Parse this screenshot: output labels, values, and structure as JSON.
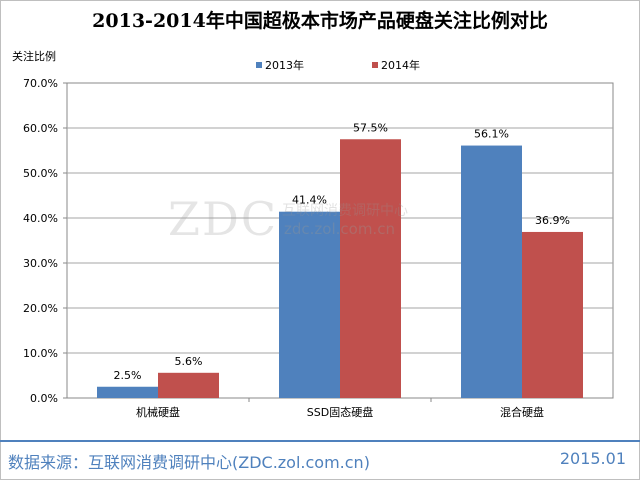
{
  "header": {
    "title": "2013-2014年中国超极本市场产品硬盘关注比例对比"
  },
  "chart_data": {
    "type": "bar",
    "title": "2013-2014年中国超极本市场产品硬盘关注比例对比",
    "ylabel": "关注比例",
    "xlabel": "",
    "categories": [
      "机械硬盘",
      "SSD固态硬盘",
      "混合硬盘"
    ],
    "series": [
      {
        "name": "2013年",
        "color": "#4f81bd",
        "values": [
          2.5,
          41.4,
          56.1
        ],
        "labels": [
          "2.5%",
          "41.4%",
          "56.1%"
        ]
      },
      {
        "name": "2014年",
        "color": "#c0504d",
        "values": [
          5.6,
          57.5,
          36.9
        ],
        "labels": [
          "5.6%",
          "57.5%",
          "36.9%"
        ]
      }
    ],
    "ylim": [
      0,
      70
    ],
    "yticks": [
      "0.0%",
      "10.0%",
      "20.0%",
      "30.0%",
      "40.0%",
      "50.0%",
      "60.0%",
      "70.0%"
    ],
    "grid": true,
    "legend_position": "top"
  },
  "watermark": {
    "logo": "ZDC",
    "cn": "互联网消费调研中心",
    "url": "zdc.zol.com.cn"
  },
  "footer": {
    "source": "数据来源：互联网消费调研中心(ZDC.zol.com.cn)",
    "date": "2015.01"
  }
}
